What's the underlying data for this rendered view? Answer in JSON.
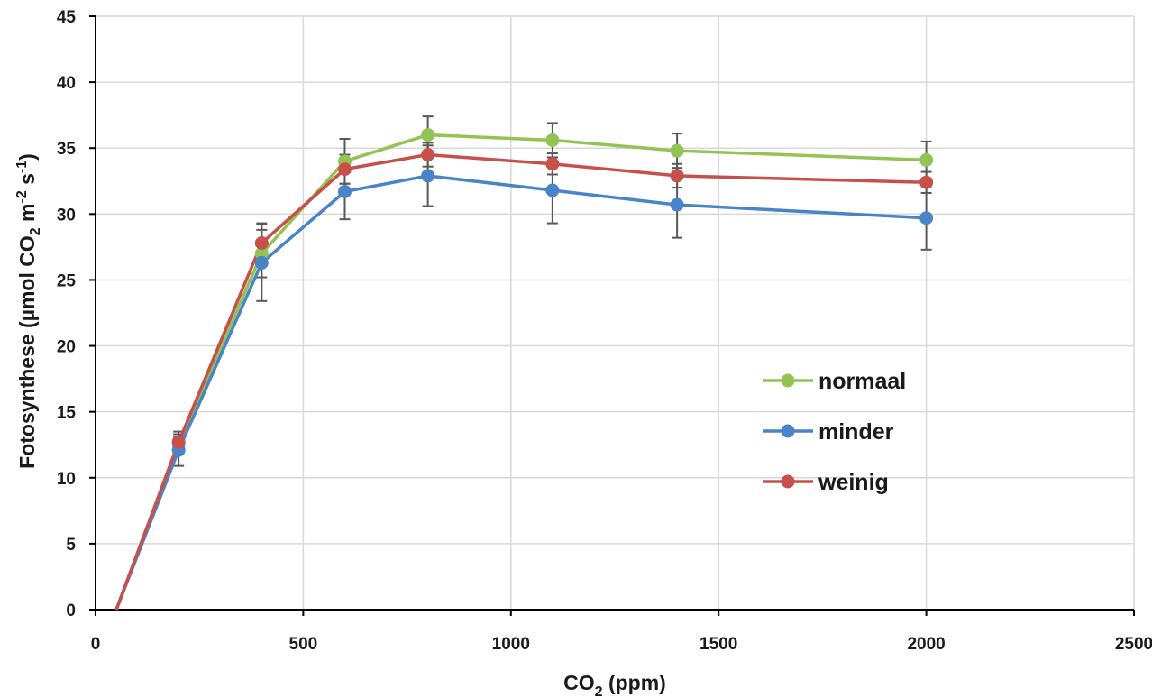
{
  "chart_data": {
    "type": "line",
    "xlabel": {
      "main": "CO",
      "sub": "2",
      "rest": " (ppm)"
    },
    "ylabel": {
      "p1": "Fotosynthese (µmol CO",
      "sub1": "2",
      "p2": " m",
      "sup1": "-2",
      "p3": " s",
      "sup2": "-1",
      "p4": ")"
    },
    "xlim": [
      0,
      2500
    ],
    "ylim": [
      0,
      45
    ],
    "xticks": [
      0,
      500,
      1000,
      1500,
      2000,
      2500
    ],
    "yticks": [
      0,
      5,
      10,
      15,
      20,
      25,
      30,
      35,
      40,
      45
    ],
    "grid": true,
    "legend_position": "center-right",
    "series": [
      {
        "name": "normaal",
        "color": "#92c353",
        "points": [
          {
            "x": 50,
            "y": 0,
            "err": 0
          },
          {
            "x": 200,
            "y": 12.5,
            "err": 0.6
          },
          {
            "x": 400,
            "y": 27,
            "err": 1.8
          },
          {
            "x": 600,
            "y": 34,
            "err": 1.7
          },
          {
            "x": 800,
            "y": 36,
            "err": 1.4
          },
          {
            "x": 1100,
            "y": 35.6,
            "err": 1.3
          },
          {
            "x": 1400,
            "y": 34.8,
            "err": 1.3
          },
          {
            "x": 2000,
            "y": 34.1,
            "err": 1.4
          }
        ]
      },
      {
        "name": "minder",
        "color": "#4a84c8",
        "points": [
          {
            "x": 50,
            "y": 0,
            "err": 0
          },
          {
            "x": 200,
            "y": 12.1,
            "err": 1.2
          },
          {
            "x": 400,
            "y": 26.3,
            "err": 2.9
          },
          {
            "x": 600,
            "y": 31.7,
            "err": 2.1
          },
          {
            "x": 800,
            "y": 32.9,
            "err": 2.3
          },
          {
            "x": 1100,
            "y": 31.8,
            "err": 2.5
          },
          {
            "x": 1400,
            "y": 30.7,
            "err": 2.5
          },
          {
            "x": 2000,
            "y": 29.7,
            "err": 2.4
          }
        ]
      },
      {
        "name": "weinig",
        "color": "#c8504b",
        "points": [
          {
            "x": 50,
            "y": 0,
            "err": 0
          },
          {
            "x": 200,
            "y": 12.7,
            "err": 0.8
          },
          {
            "x": 400,
            "y": 27.8,
            "err": 1.5
          },
          {
            "x": 600,
            "y": 33.4,
            "err": 1.1
          },
          {
            "x": 800,
            "y": 34.5,
            "err": 0.9
          },
          {
            "x": 1100,
            "y": 33.8,
            "err": 0.8
          },
          {
            "x": 1400,
            "y": 32.9,
            "err": 0.9
          },
          {
            "x": 2000,
            "y": 32.4,
            "err": 0.8
          }
        ]
      }
    ]
  }
}
